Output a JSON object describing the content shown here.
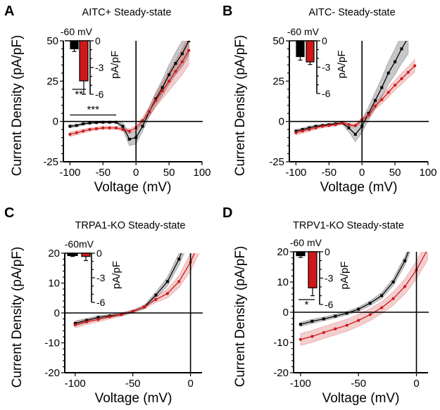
{
  "chart_data": [
    {
      "panel_label": "A",
      "type": "line",
      "title": "AITC+ Steady-state",
      "xlabel": "Voltage (mV)",
      "ylabel": "Current Density (pA/pF)",
      "xlim": [
        -110,
        100
      ],
      "ylim": [
        -25,
        50
      ],
      "xticks": [
        -100,
        -50,
        0,
        50,
        100
      ],
      "yticks": [
        -25,
        0,
        25,
        50
      ],
      "series": [
        {
          "name": "black",
          "color": "#000000",
          "band": "rgba(0,0,0,0.22)",
          "x": [
            -100,
            -90,
            -80,
            -70,
            -60,
            -50,
            -40,
            -30,
            -20,
            -10,
            0,
            10,
            20,
            30,
            40,
            50,
            60,
            70,
            80
          ],
          "y": [
            -3,
            -2.5,
            -1.5,
            -1,
            -0.7,
            -0.5,
            -0.5,
            -0.5,
            -3,
            -11,
            -10,
            -3,
            6,
            14,
            21,
            29,
            36,
            42,
            50
          ],
          "sem": [
            1,
            0.8,
            0.7,
            0.6,
            0.5,
            0.5,
            0.5,
            0.5,
            2,
            4,
            4,
            3,
            3,
            4,
            5,
            6,
            7,
            8,
            9
          ]
        },
        {
          "name": "red",
          "color": "#d01818",
          "band": "rgba(200,30,30,0.22)",
          "x": [
            -100,
            -90,
            -80,
            -70,
            -60,
            -50,
            -40,
            -30,
            -20,
            -10,
            0,
            10,
            20,
            30,
            40,
            50,
            60,
            70,
            80
          ],
          "y": [
            -8,
            -7,
            -6,
            -5,
            -4.5,
            -4,
            -4,
            -4,
            -5,
            -6,
            -4,
            0.5,
            6,
            13,
            19,
            25,
            31,
            37,
            44
          ],
          "sem": [
            1.5,
            1.3,
            1.2,
            1,
            1,
            1,
            1,
            1,
            1,
            1.5,
            1.5,
            2,
            3,
            4,
            5,
            6,
            7,
            8,
            9
          ]
        }
      ],
      "annotation": {
        "text": "***",
        "x_from": -100,
        "x_to": -30,
        "y": 4
      },
      "inset": {
        "label": "-60 mV",
        "ylabel": "pA/pF",
        "yticks": [
          0,
          -3,
          -6
        ],
        "ylim": [
          0,
          -6
        ],
        "bars": [
          {
            "name": "black",
            "value": -0.9,
            "error": 0.3,
            "color": "#000000"
          },
          {
            "name": "red",
            "value": -4.5,
            "error": 1.5,
            "color": "#d01818"
          }
        ],
        "significance": "**"
      }
    },
    {
      "panel_label": "B",
      "type": "line",
      "title": "AITC- Steady-state",
      "xlabel": "Voltage (mV)",
      "ylabel": "Current Density (pA/pF)",
      "xlim": [
        -110,
        100
      ],
      "ylim": [
        -25,
        50
      ],
      "xticks": [
        -100,
        -50,
        0,
        50,
        100
      ],
      "yticks": [
        -25,
        0,
        25,
        50
      ],
      "series": [
        {
          "name": "black",
          "color": "#000000",
          "band": "rgba(0,0,0,0.22)",
          "x": [
            -100,
            -90,
            -80,
            -70,
            -60,
            -50,
            -40,
            -30,
            -20,
            -10,
            0,
            10,
            20,
            30,
            40,
            50,
            60,
            70
          ],
          "y": [
            -6,
            -5,
            -4,
            -3,
            -2.5,
            -2,
            -1.5,
            -1,
            -4,
            -8,
            -3,
            5,
            13,
            21,
            30,
            37,
            45,
            52
          ],
          "sem": [
            1,
            1,
            1,
            0.8,
            0.8,
            0.7,
            0.7,
            0.7,
            2.5,
            4.5,
            4,
            4,
            5,
            6,
            7,
            8,
            9,
            10
          ]
        },
        {
          "name": "red",
          "color": "#d01818",
          "band": "rgba(200,30,30,0.22)",
          "x": [
            -100,
            -90,
            -80,
            -70,
            -60,
            -50,
            -40,
            -30,
            -20,
            -10,
            0,
            10,
            20,
            30,
            40,
            50,
            60,
            70,
            80
          ],
          "y": [
            -7,
            -6,
            -5,
            -4,
            -3,
            -2.5,
            -2,
            -1,
            -2,
            -2.5,
            1,
            4,
            9.5,
            13.5,
            18,
            22.5,
            26.5,
            30.5,
            34.5
          ],
          "sem": [
            1.5,
            1.3,
            1.2,
            1,
            1,
            1,
            0.8,
            0.8,
            1,
            1,
            1.5,
            2,
            2,
            2.5,
            3,
            3,
            3.5,
            3.5,
            4
          ]
        }
      ],
      "inset": {
        "label": "-60 mV",
        "ylabel": "pA/pF",
        "yticks": [
          0,
          -3,
          -6
        ],
        "ylim": [
          0,
          -6
        ],
        "bars": [
          {
            "name": "black",
            "value": -1.8,
            "error": 0.4,
            "color": "#000000"
          },
          {
            "name": "red",
            "value": -2.4,
            "error": 0.3,
            "color": "#d01818"
          }
        ]
      }
    },
    {
      "panel_label": "C",
      "type": "line",
      "title": "TRPA1-KO  Steady-state",
      "xlabel": "Voltage (mV)",
      "ylabel": "Current Density (pA/pF)",
      "xlim": [
        -109,
        10
      ],
      "ylim": [
        -20,
        20
      ],
      "xticks": [
        -100,
        -50,
        0
      ],
      "yticks": [
        -20,
        -10,
        0,
        10,
        20
      ],
      "series": [
        {
          "name": "black",
          "color": "#000000",
          "band": "rgba(0,0,0,0.22)",
          "x": [
            -100,
            -90,
            -80,
            -70,
            -60,
            -50,
            -40,
            -30,
            -20,
            -10,
            0
          ],
          "y": [
            -3.5,
            -2.5,
            -1.5,
            -1,
            -0.5,
            0.5,
            2,
            6,
            10.5,
            18,
            28
          ],
          "sem": [
            0.8,
            0.7,
            0.6,
            0.5,
            0.4,
            0.4,
            0.6,
            1,
            1.5,
            2,
            3
          ]
        },
        {
          "name": "red",
          "color": "#d01818",
          "band": "rgba(200,30,30,0.22)",
          "x": [
            -100,
            -90,
            -80,
            -70,
            -60,
            -50,
            -40,
            -30,
            -20,
            -10,
            0,
            10
          ],
          "y": [
            -4,
            -3,
            -2.2,
            -1.3,
            -0.5,
            0.5,
            2,
            4.5,
            6.5,
            10.5,
            17,
            26
          ],
          "sem": [
            1,
            0.9,
            0.8,
            0.7,
            0.6,
            0.5,
            0.6,
            1,
            1.5,
            2,
            3,
            4
          ]
        }
      ],
      "inset": {
        "label": "-60mV",
        "ylabel": "pA/pF",
        "yticks": [
          0,
          -3,
          -6
        ],
        "ylim": [
          0,
          -6
        ],
        "bars": [
          {
            "name": "black",
            "value": -0.3,
            "error": 0.1,
            "color": "#000000"
          },
          {
            "name": "red",
            "value": -0.4,
            "error": 0.5,
            "color": "#d01818"
          }
        ]
      }
    },
    {
      "panel_label": "D",
      "type": "line",
      "title": "TRPV1-KO   Steady-state",
      "xlabel": "Voltage (mV)",
      "ylabel": "Current Density (pA/pF)",
      "xlim": [
        -106,
        10
      ],
      "ylim": [
        -20,
        20
      ],
      "xticks": [
        -100,
        -50,
        0
      ],
      "yticks": [
        -20,
        -10,
        0,
        10,
        20
      ],
      "series": [
        {
          "name": "black",
          "color": "#000000",
          "band": "rgba(0,0,0,0.22)",
          "x": [
            -100,
            -90,
            -80,
            -70,
            -60,
            -50,
            -40,
            -30,
            -20,
            -10,
            0
          ],
          "y": [
            -4,
            -3,
            -2.2,
            -1.3,
            -0.3,
            1,
            3,
            5.5,
            10,
            17,
            27
          ],
          "sem": [
            0.7,
            0.7,
            0.6,
            0.6,
            0.6,
            0.7,
            0.8,
            1,
            1.2,
            1.5,
            2
          ]
        },
        {
          "name": "red",
          "color": "#d01818",
          "band": "rgba(200,30,30,0.22)",
          "x": [
            -100,
            -90,
            -80,
            -70,
            -60,
            -50,
            -40,
            -30,
            -20,
            -10,
            0,
            10
          ],
          "y": [
            -9,
            -8,
            -6.7,
            -5.5,
            -4.3,
            -2.7,
            -0.8,
            1.5,
            4.5,
            8.5,
            14,
            21
          ],
          "sem": [
            2,
            2,
            2,
            2,
            2,
            2,
            2,
            2,
            2.2,
            2.5,
            3,
            3.5
          ]
        }
      ],
      "inset": {
        "label": "-60 mV",
        "ylabel": "pA/pF",
        "yticks": [
          0,
          -3,
          -6
        ],
        "ylim": [
          0,
          -6
        ],
        "bars": [
          {
            "name": "black",
            "value": -0.45,
            "error": 0.2,
            "color": "#000000"
          },
          {
            "name": "red",
            "value": -4.1,
            "error": 0.9,
            "color": "#d01818"
          }
        ],
        "significance": "*"
      }
    }
  ]
}
